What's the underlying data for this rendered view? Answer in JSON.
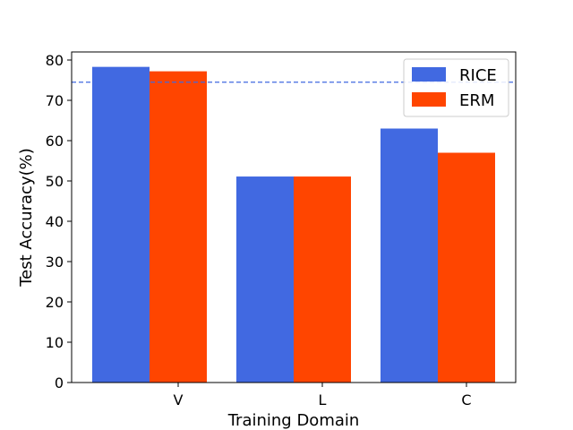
{
  "chart_data": {
    "type": "bar",
    "categories": [
      "V",
      "L",
      "C"
    ],
    "series": [
      {
        "name": "RICE",
        "values": [
          78.3,
          51.1,
          63.0
        ],
        "color": "#4169e1"
      },
      {
        "name": "ERM",
        "values": [
          77.2,
          51.1,
          57.0
        ],
        "color": "#ff4500"
      }
    ],
    "xlabel": "Training Domain",
    "ylabel": "Test Accuracy(%)",
    "ylim": [
      0,
      82
    ],
    "yticks": [
      0,
      10,
      20,
      30,
      40,
      50,
      60,
      70,
      80
    ],
    "reference_line": {
      "value": 74.5,
      "style": "dashed",
      "color": "#4169e1"
    },
    "legend_position": "top-right",
    "grid": false
  }
}
